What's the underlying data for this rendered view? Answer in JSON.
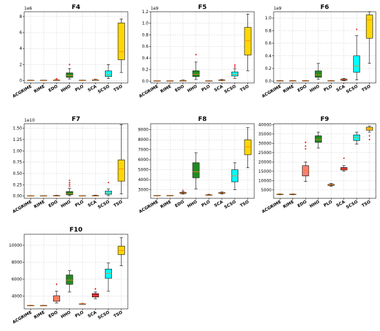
{
  "chart_data": [
    {
      "type": "box",
      "title": "F4",
      "multiplier": "1e6",
      "scale": 1000000.0,
      "ylim": [
        -0.3,
        8.6
      ],
      "yticks": [
        0,
        2,
        4,
        6,
        8
      ],
      "yticklabels": [
        "0",
        "2",
        "4",
        "6",
        "8"
      ],
      "categories": [
        "ACGRIME",
        "RIME",
        "EDO",
        "HHO",
        "PLO",
        "SCA",
        "SCSO",
        "TSO"
      ],
      "boxes": [
        {
          "min": 0.005,
          "q1": 0.01,
          "med": 0.015,
          "q3": 0.02,
          "max": 0.03,
          "outliers": []
        },
        {
          "min": 0.005,
          "q1": 0.01,
          "med": 0.015,
          "q3": 0.02,
          "max": 0.03,
          "outliers": []
        },
        {
          "min": 0.02,
          "q1": 0.04,
          "med": 0.06,
          "q3": 0.09,
          "max": 0.14,
          "outliers": [
            0.2
          ]
        },
        {
          "min": 0.2,
          "q1": 0.4,
          "med": 0.6,
          "q3": 0.95,
          "max": 1.5,
          "outliers": [
            2.0
          ]
        },
        {
          "min": 0.005,
          "q1": 0.01,
          "med": 0.015,
          "q3": 0.02,
          "max": 0.03,
          "outliers": []
        },
        {
          "min": 0.03,
          "q1": 0.06,
          "med": 0.09,
          "q3": 0.12,
          "max": 0.17,
          "outliers": []
        },
        {
          "min": 0.25,
          "q1": 0.5,
          "med": 0.75,
          "q3": 1.2,
          "max": 2.0,
          "outliers": []
        },
        {
          "min": 1.0,
          "q1": 2.6,
          "med": 3.6,
          "q3": 7.2,
          "max": 7.7,
          "outliers": []
        }
      ]
    },
    {
      "type": "box",
      "title": "F5",
      "multiplier": "1e9",
      "scale": 1000000000.0,
      "ylim": [
        -0.03,
        1.2
      ],
      "yticks": [
        0.0,
        0.2,
        0.4,
        0.6,
        0.8,
        1.0,
        1.2
      ],
      "yticklabels": [
        "0.0",
        "0.2",
        "0.4",
        "0.6",
        "0.8",
        "1.0",
        "1.2"
      ],
      "categories": [
        "ACGRIME",
        "RIME",
        "EDO",
        "HHO",
        "PLO",
        "SCA",
        "SCSO",
        "TSO"
      ],
      "boxes": [
        {
          "min": 0.002,
          "q1": 0.004,
          "med": 0.005,
          "q3": 0.006,
          "max": 0.008,
          "outliers": []
        },
        {
          "min": 0.002,
          "q1": 0.004,
          "med": 0.005,
          "q3": 0.006,
          "max": 0.008,
          "outliers": []
        },
        {
          "min": 0.005,
          "q1": 0.008,
          "med": 0.01,
          "q3": 0.014,
          "max": 0.02,
          "outliers": []
        },
        {
          "min": 0.03,
          "q1": 0.08,
          "med": 0.12,
          "q3": 0.18,
          "max": 0.33,
          "outliers": [
            0.46
          ]
        },
        {
          "min": 0.002,
          "q1": 0.004,
          "med": 0.005,
          "q3": 0.006,
          "max": 0.008,
          "outliers": []
        },
        {
          "min": 0.008,
          "q1": 0.012,
          "med": 0.016,
          "q3": 0.022,
          "max": 0.03,
          "outliers": []
        },
        {
          "min": 0.05,
          "q1": 0.09,
          "med": 0.12,
          "q3": 0.16,
          "max": 0.22,
          "outliers": [
            0.25,
            0.28
          ]
        },
        {
          "min": 0.18,
          "q1": 0.45,
          "med": 0.7,
          "q3": 0.93,
          "max": 1.16,
          "outliers": []
        }
      ]
    },
    {
      "type": "box",
      "title": "F6",
      "multiplier": "1e9",
      "scale": 1000000000.0,
      "ylim": [
        -0.03,
        1.1
      ],
      "yticks": [
        0.0,
        0.2,
        0.4,
        0.6,
        0.8,
        1.0
      ],
      "yticklabels": [
        "0.0",
        "0.2",
        "0.4",
        "0.6",
        "0.8",
        "1.0"
      ],
      "categories": [
        "ACGRIME",
        "RIME",
        "EDO",
        "HHO",
        "PLO",
        "SCA",
        "SCSO",
        "TSO"
      ],
      "boxes": [
        {
          "min": 0.002,
          "q1": 0.004,
          "med": 0.005,
          "q3": 0.006,
          "max": 0.008,
          "outliers": []
        },
        {
          "min": 0.002,
          "q1": 0.004,
          "med": 0.005,
          "q3": 0.006,
          "max": 0.008,
          "outliers": []
        },
        {
          "min": 0.002,
          "q1": 0.004,
          "med": 0.005,
          "q3": 0.006,
          "max": 0.008,
          "outliers": []
        },
        {
          "min": 0.03,
          "q1": 0.06,
          "med": 0.1,
          "q3": 0.16,
          "max": 0.28,
          "outliers": []
        },
        {
          "min": 0.002,
          "q1": 0.004,
          "med": 0.005,
          "q3": 0.006,
          "max": 0.008,
          "outliers": []
        },
        {
          "min": 0.005,
          "q1": 0.012,
          "med": 0.02,
          "q3": 0.03,
          "max": 0.04,
          "outliers": []
        },
        {
          "min": 0.02,
          "q1": 0.14,
          "med": 0.24,
          "q3": 0.4,
          "max": 0.72,
          "outliers": [
            0.82
          ]
        },
        {
          "min": 0.28,
          "q1": 0.68,
          "med": 0.97,
          "q3": 1.05,
          "max": 1.1,
          "outliers": []
        }
      ]
    },
    {
      "type": "box",
      "title": "F7",
      "multiplier": "1e10",
      "scale": 10000000000.0,
      "ylim": [
        -0.05,
        1.6
      ],
      "yticks": [
        0.0,
        0.25,
        0.5,
        0.75,
        1.0,
        1.25,
        1.5
      ],
      "yticklabels": [
        "0.00",
        "0.25",
        "0.50",
        "0.75",
        "1.00",
        "1.25",
        "1.50"
      ],
      "categories": [
        "ACGRIME",
        "RIME",
        "EDO",
        "HHO",
        "PLO",
        "SCA",
        "SCSO",
        "TSO"
      ],
      "boxes": [
        {
          "min": 0.002,
          "q1": 0.004,
          "med": 0.005,
          "q3": 0.006,
          "max": 0.008,
          "outliers": []
        },
        {
          "min": 0.002,
          "q1": 0.004,
          "med": 0.005,
          "q3": 0.006,
          "max": 0.008,
          "outliers": []
        },
        {
          "min": 0.003,
          "q1": 0.006,
          "med": 0.008,
          "q3": 0.012,
          "max": 0.018,
          "outliers": []
        },
        {
          "min": 0.01,
          "q1": 0.03,
          "med": 0.05,
          "q3": 0.1,
          "max": 0.17,
          "outliers": [
            0.22,
            0.26,
            0.3,
            0.35
          ]
        },
        {
          "min": 0.002,
          "q1": 0.004,
          "med": 0.005,
          "q3": 0.006,
          "max": 0.008,
          "outliers": []
        },
        {
          "min": 0.003,
          "q1": 0.006,
          "med": 0.008,
          "q3": 0.012,
          "max": 0.02,
          "outliers": []
        },
        {
          "min": 0.01,
          "q1": 0.04,
          "med": 0.07,
          "q3": 0.11,
          "max": 0.16,
          "outliers": [
            0.3
          ]
        },
        {
          "min": 0.05,
          "q1": 0.33,
          "med": 0.6,
          "q3": 0.8,
          "max": 1.58,
          "outliers": []
        }
      ]
    },
    {
      "type": "box",
      "title": "F8",
      "multiplier": "",
      "scale": 1,
      "ylim": [
        2150,
        9600
      ],
      "yticks": [
        3000,
        4000,
        5000,
        6000,
        7000,
        8000,
        9000
      ],
      "yticklabels": [
        "3000",
        "4000",
        "5000",
        "6000",
        "7000",
        "8000",
        "9000"
      ],
      "categories": [
        "ACGRIME",
        "RIME",
        "EDO",
        "HHO",
        "PLO",
        "SCA",
        "SCSO",
        "TSO"
      ],
      "boxes": [
        {
          "min": 2405,
          "q1": 2415,
          "med": 2420,
          "q3": 2428,
          "max": 2440,
          "outliers": []
        },
        {
          "min": 2405,
          "q1": 2415,
          "med": 2420,
          "q3": 2428,
          "max": 2440,
          "outliers": []
        },
        {
          "min": 2580,
          "q1": 2630,
          "med": 2680,
          "q3": 2740,
          "max": 2800,
          "outliers": [
            2940
          ]
        },
        {
          "min": 3100,
          "q1": 4200,
          "med": 4800,
          "q3": 5700,
          "max": 6700,
          "outliers": []
        },
        {
          "min": 2450,
          "q1": 2480,
          "med": 2500,
          "q3": 2530,
          "max": 2560,
          "outliers": []
        },
        {
          "min": 2580,
          "q1": 2640,
          "med": 2680,
          "q3": 2720,
          "max": 2780,
          "outliers": []
        },
        {
          "min": 3000,
          "q1": 3800,
          "med": 4400,
          "q3": 5000,
          "max": 5700,
          "outliers": []
        },
        {
          "min": 5200,
          "q1": 6500,
          "med": 7300,
          "q3": 8000,
          "max": 9200,
          "outliers": []
        }
      ]
    },
    {
      "type": "box",
      "title": "F9",
      "multiplier": "",
      "scale": 1,
      "ylim": [
        500,
        40500
      ],
      "yticks": [
        5000,
        10000,
        15000,
        20000,
        25000,
        30000,
        35000,
        40000
      ],
      "yticklabels": [
        "5000",
        "10000",
        "15000",
        "20000",
        "25000",
        "30000",
        "35000",
        "40000"
      ],
      "categories": [
        "ACGRIME",
        "RIME",
        "EDO",
        "HHO",
        "PLO",
        "SCA",
        "SCSO",
        "TSO"
      ],
      "boxes": [
        {
          "min": 2400,
          "q1": 2600,
          "med": 2700,
          "q3": 2800,
          "max": 2900,
          "outliers": []
        },
        {
          "min": 2400,
          "q1": 2600,
          "med": 2700,
          "q3": 2800,
          "max": 2900,
          "outliers": []
        },
        {
          "min": 9500,
          "q1": 12500,
          "med": 15500,
          "q3": 18000,
          "max": 20000,
          "outliers": [
            27000,
            28500,
            30500
          ]
        },
        {
          "min": 27500,
          "q1": 30500,
          "med": 32000,
          "q3": 34000,
          "max": 36000,
          "outliers": []
        },
        {
          "min": 7000,
          "q1": 7400,
          "med": 7700,
          "q3": 8000,
          "max": 8400,
          "outliers": []
        },
        {
          "min": 15000,
          "q1": 15700,
          "med": 16300,
          "q3": 17000,
          "max": 18000,
          "outliers": [
            22000
          ]
        },
        {
          "min": 29500,
          "q1": 31500,
          "med": 33000,
          "q3": 34500,
          "max": 36000,
          "outliers": []
        },
        {
          "min": 36000,
          "q1": 37000,
          "med": 37800,
          "q3": 38600,
          "max": 39200,
          "outliers": [
            34000,
            32000
          ]
        }
      ]
    },
    {
      "type": "box",
      "title": "F10",
      "multiplier": "",
      "scale": 1,
      "ylim": [
        2500,
        11300
      ],
      "yticks": [
        4000,
        6000,
        8000,
        10000
      ],
      "yticklabels": [
        "4000",
        "6000",
        "8000",
        "10000"
      ],
      "categories": [
        "ACGRIME",
        "RIME",
        "EDO",
        "HHO",
        "PLO",
        "SCA",
        "SCSO",
        "TSO"
      ],
      "boxes": [
        {
          "min": 2870,
          "q1": 2890,
          "med": 2900,
          "q3": 2910,
          "max": 2930,
          "outliers": []
        },
        {
          "min": 2860,
          "q1": 2880,
          "med": 2890,
          "q3": 2900,
          "max": 2920,
          "outliers": []
        },
        {
          "min": 3200,
          "q1": 3400,
          "med": 3750,
          "q3": 4050,
          "max": 4600,
          "outliers": [
            5400
          ]
        },
        {
          "min": 4500,
          "q1": 5400,
          "med": 5900,
          "q3": 6500,
          "max": 7000,
          "outliers": []
        },
        {
          "min": 3050,
          "q1": 3080,
          "med": 3100,
          "q3": 3120,
          "max": 3150,
          "outliers": []
        },
        {
          "min": 3700,
          "q1": 3900,
          "med": 4050,
          "q3": 4300,
          "max": 4500,
          "outliers": [
            4850
          ]
        },
        {
          "min": 4600,
          "q1": 6100,
          "med": 6700,
          "q3": 7200,
          "max": 7900,
          "outliers": []
        },
        {
          "min": 7600,
          "q1": 8900,
          "med": 9400,
          "q3": 9900,
          "max": 10900,
          "outliers": []
        }
      ]
    }
  ],
  "colors": [
    "#ff7f0e",
    "#9467bd",
    "#fa8072",
    "#228b22",
    "#8b4513",
    "#dc143c",
    "#00ffff",
    "#ffd700"
  ],
  "outlier_color": "#e8292b"
}
